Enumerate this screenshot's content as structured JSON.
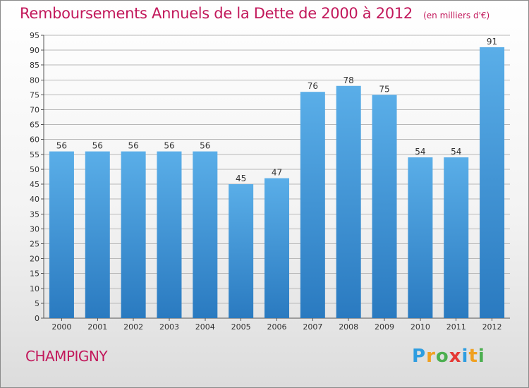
{
  "header": {
    "title": "Remboursements Annuels de la Dette de 2000 à 2012",
    "subtitle": "(en milliers d'€)"
  },
  "footer": {
    "place": "CHAMPIGNY",
    "logo_letters": [
      "P",
      "r",
      "o",
      "x",
      "i",
      "t",
      "i"
    ],
    "logo_colors": [
      "#2e9de0",
      "#f0a020",
      "#4caf50",
      "#e53935",
      "#2e9de0",
      "#f0a020",
      "#4caf50"
    ]
  },
  "colors": {
    "bar_top": "#5aaee8",
    "bar_bottom": "#2a7ac0",
    "title": "#c2185b",
    "grid": "#b8b8b8"
  },
  "chart_data": {
    "type": "bar",
    "categories": [
      "2000",
      "2001",
      "2002",
      "2003",
      "2004",
      "2005",
      "2006",
      "2007",
      "2008",
      "2009",
      "2010",
      "2011",
      "2012"
    ],
    "values": [
      56,
      56,
      56,
      56,
      56,
      45,
      47,
      76,
      78,
      75,
      54,
      54,
      91
    ],
    "ylim": [
      0,
      95
    ],
    "ytick_step": 5,
    "grid": true,
    "data_labels": true
  }
}
